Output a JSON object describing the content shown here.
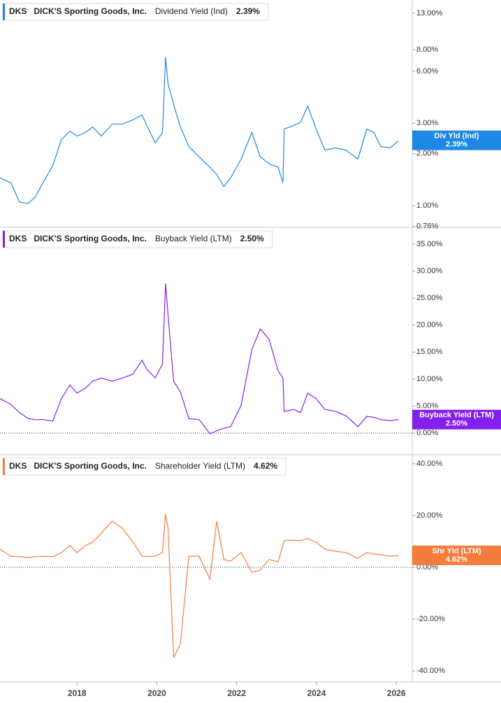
{
  "chart_data": [
    {
      "type": "line",
      "header": {
        "ticker": "DKS",
        "company": "DICK'S Sporting Goods, Inc.",
        "metric": "Dividend Yield (Ind)",
        "value_label": "2.39%"
      },
      "x": [
        2016.07,
        2016.34,
        2016.56,
        2016.77,
        2016.95,
        2017.16,
        2017.39,
        2017.61,
        2017.82,
        2018.0,
        2018.21,
        2018.39,
        2018.61,
        2018.88,
        2019.14,
        2019.4,
        2019.63,
        2019.75,
        2019.96,
        2020.14,
        2020.22,
        2020.28,
        2020.42,
        2020.59,
        2020.8,
        2021.06,
        2021.33,
        2021.5,
        2021.68,
        2021.85,
        2022.11,
        2022.38,
        2022.59,
        2022.81,
        2023.04,
        2023.16,
        2023.19,
        2023.43,
        2023.6,
        2023.78,
        2023.99,
        2024.21,
        2024.48,
        2024.74,
        2025.04,
        2025.26,
        2025.44,
        2025.61,
        2025.84,
        2026.05
      ],
      "xlim": [
        2016.07,
        2026.4
      ],
      "series": [
        {
          "name": "Div Yld (Ind)",
          "color": "#1e88e5",
          "values": [
            1.45,
            1.36,
            1.05,
            1.03,
            1.12,
            1.38,
            1.7,
            2.42,
            2.7,
            2.53,
            2.65,
            2.86,
            2.53,
            2.97,
            2.97,
            3.14,
            3.35,
            2.91,
            2.31,
            2.65,
            7.24,
            5.08,
            3.85,
            2.86,
            2.2,
            1.92,
            1.67,
            1.52,
            1.29,
            1.45,
            1.86,
            2.65,
            1.92,
            1.75,
            1.67,
            1.36,
            2.78,
            2.91,
            3.05,
            3.77,
            2.78,
            2.1,
            2.16,
            2.1,
            1.86,
            2.78,
            2.65,
            2.2,
            2.16,
            2.37
          ]
        }
      ],
      "current_value": 2.39,
      "log_scale": true,
      "ylim": [
        0.75,
        15.5
      ],
      "yticks": [
        {
          "value": 13,
          "label": "13.00%"
        },
        {
          "value": 8,
          "label": "8.00%"
        },
        {
          "value": 6,
          "label": "6.00%"
        },
        {
          "value": 3,
          "label": "3.00%"
        },
        {
          "value": 2,
          "label": "2.00%"
        },
        {
          "value": 1,
          "label": "1.00%"
        },
        {
          "value": 0.76,
          "label": "0.76%"
        }
      ]
    },
    {
      "type": "line",
      "header": {
        "ticker": "DKS",
        "company": "DICK'S Sporting Goods, Inc.",
        "metric": "Buyback Yield (LTM)",
        "value_label": "2.50%"
      },
      "x": [
        2016.07,
        2016.34,
        2016.56,
        2016.77,
        2016.95,
        2017.16,
        2017.39,
        2017.61,
        2017.82,
        2018.0,
        2018.21,
        2018.39,
        2018.61,
        2018.88,
        2019.14,
        2019.4,
        2019.63,
        2019.75,
        2019.96,
        2020.14,
        2020.22,
        2020.28,
        2020.42,
        2020.59,
        2020.8,
        2021.06,
        2021.33,
        2021.5,
        2021.68,
        2021.85,
        2022.11,
        2022.38,
        2022.59,
        2022.81,
        2023.04,
        2023.16,
        2023.19,
        2023.43,
        2023.6,
        2023.78,
        2023.99,
        2024.21,
        2024.48,
        2024.74,
        2025.04,
        2025.26,
        2025.44,
        2025.61,
        2025.84,
        2026.05
      ],
      "xlim": [
        2016.07,
        2026.4
      ],
      "series": [
        {
          "name": "Buyback Yield (LTM)",
          "color": "#8420ee",
          "values": [
            6.4,
            5.3,
            3.8,
            2.7,
            2.5,
            2.5,
            2.2,
            6.4,
            8.9,
            7.4,
            8.3,
            9.6,
            10.2,
            9.6,
            10.2,
            10.9,
            13.5,
            11.8,
            10.2,
            12.8,
            27.7,
            21.9,
            9.6,
            7.6,
            2.7,
            2.5,
            -0.1,
            0.4,
            0.9,
            1.2,
            5.1,
            15.4,
            19.3,
            17.4,
            11.5,
            10.2,
            4.0,
            4.4,
            3.8,
            7.4,
            6.4,
            4.4,
            4.0,
            3.2,
            1.2,
            3.1,
            2.9,
            2.5,
            2.3,
            2.5
          ]
        }
      ],
      "current_value": 2.5,
      "log_scale": false,
      "ylim": [
        -4,
        38.1
      ],
      "yticks": [
        {
          "value": 35,
          "label": "35.00%"
        },
        {
          "value": 30,
          "label": "30.00%"
        },
        {
          "value": 25,
          "label": "25.00%"
        },
        {
          "value": 20,
          "label": "20.00%"
        },
        {
          "value": 15,
          "label": "15.00%"
        },
        {
          "value": 10,
          "label": "10.00%"
        },
        {
          "value": 5,
          "label": "5.00%"
        },
        {
          "value": 0,
          "label": "0.00%"
        }
      ]
    },
    {
      "type": "line",
      "header": {
        "ticker": "DKS",
        "company": "DICK'S Sporting Goods, Inc.",
        "metric": "Shareholder Yield (LTM)",
        "value_label": "4.62%"
      },
      "x": [
        2016.07,
        2016.34,
        2016.56,
        2016.77,
        2016.95,
        2017.16,
        2017.39,
        2017.61,
        2017.82,
        2018.0,
        2018.21,
        2018.39,
        2018.61,
        2018.88,
        2019.14,
        2019.4,
        2019.63,
        2019.75,
        2019.96,
        2020.14,
        2020.22,
        2020.28,
        2020.42,
        2020.59,
        2020.8,
        2021.06,
        2021.33,
        2021.5,
        2021.68,
        2021.85,
        2022.11,
        2022.38,
        2022.59,
        2022.81,
        2023.04,
        2023.16,
        2023.19,
        2023.43,
        2023.6,
        2023.78,
        2023.99,
        2024.21,
        2024.48,
        2024.74,
        2025.04,
        2025.26,
        2025.44,
        2025.61,
        2025.84,
        2026.05
      ],
      "xlim": [
        2016.07,
        2026.4
      ],
      "series": [
        {
          "name": "Shr Yld (LTM)",
          "color": "#f47d3e",
          "values": [
            7.0,
            4.3,
            4.1,
            3.8,
            4.1,
            4.3,
            4.1,
            5.7,
            8.4,
            5.7,
            8.4,
            9.7,
            13.2,
            17.8,
            15.1,
            9.7,
            4.3,
            4.1,
            4.3,
            5.7,
            20.5,
            15.1,
            -34.9,
            -29.5,
            4.3,
            4.3,
            -4.6,
            17.8,
            3.0,
            2.4,
            5.7,
            -1.9,
            -1.1,
            3.0,
            2.2,
            8.4,
            10.3,
            10.5,
            10.3,
            11.1,
            9.7,
            7.0,
            6.2,
            5.7,
            3.5,
            5.7,
            5.1,
            4.9,
            4.3,
            4.6
          ]
        }
      ],
      "current_value": 4.62,
      "log_scale": false,
      "ylim": [
        -44.3,
        43.5
      ],
      "yticks": [
        {
          "value": 40,
          "label": "40.00%"
        },
        {
          "value": 20,
          "label": "20.00%"
        },
        {
          "value": 0,
          "label": "0.00%"
        },
        {
          "value": -20,
          "label": "-20.00%"
        },
        {
          "value": -40,
          "label": "-40.00%"
        }
      ],
      "xticks": [
        2018,
        2020,
        2022,
        2024,
        2026
      ]
    }
  ]
}
